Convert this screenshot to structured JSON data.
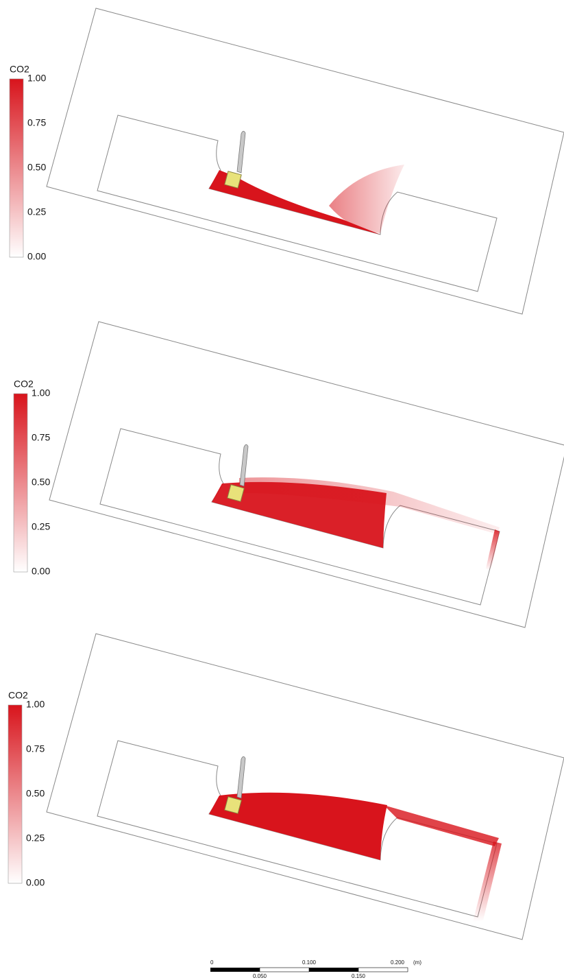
{
  "panels": [
    {
      "legend": {
        "title": "CO2",
        "ticks": [
          "1.00",
          "0.75",
          "0.50",
          "0.25",
          "0.00"
        ]
      }
    },
    {
      "legend": {
        "title": "CO2",
        "ticks": [
          "1.00",
          "0.75",
          "0.50",
          "0.25",
          "0.00"
        ]
      }
    },
    {
      "legend": {
        "title": "CO2",
        "ticks": [
          "1.00",
          "0.75",
          "0.50",
          "0.25",
          "0.00"
        ]
      }
    }
  ],
  "scale_bar": {
    "top_labels": [
      "0",
      "0.100",
      "0.200"
    ],
    "bottom_labels": [
      "0.050",
      "0.150"
    ],
    "unit": "(m)"
  }
}
